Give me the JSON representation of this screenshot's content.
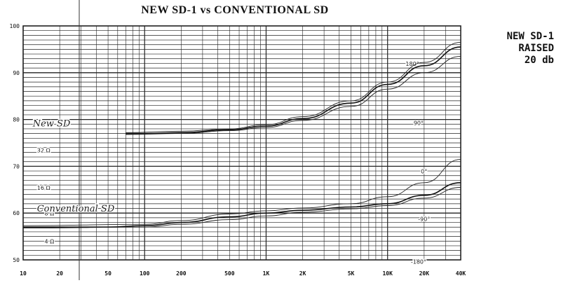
{
  "chart_data": {
    "type": "line",
    "title": "NEW SD-1 vs CONVENTIONAL SD",
    "side_note": [
      "NEW SD-1",
      "RAISED",
      "20 db"
    ],
    "x_scale": "log",
    "xlim": [
      10,
      40000
    ],
    "ylim": [
      50,
      100
    ],
    "grid": true,
    "x_ticks": [
      {
        "v": 10,
        "label": "10"
      },
      {
        "v": 20,
        "label": "20"
      },
      {
        "v": 50,
        "label": "50"
      },
      {
        "v": 100,
        "label": "100"
      },
      {
        "v": 200,
        "label": "200"
      },
      {
        "v": 500,
        "label": "500"
      },
      {
        "v": 1000,
        "label": "1K"
      },
      {
        "v": 2000,
        "label": "2K"
      },
      {
        "v": 5000,
        "label": "5K"
      },
      {
        "v": 10000,
        "label": "10K"
      },
      {
        "v": 20000,
        "label": "20K"
      },
      {
        "v": 40000,
        "label": "40K"
      }
    ],
    "y_ticks": [
      {
        "v": 100,
        "label": "100"
      },
      {
        "v": 90,
        "label": "90"
      },
      {
        "v": 80,
        "label": "80"
      },
      {
        "v": 70,
        "label": "70"
      },
      {
        "v": 60,
        "label": "60"
      },
      {
        "v": 50,
        "label": "50"
      }
    ],
    "phase_labels": [
      {
        "text": "180°",
        "x": 16000,
        "y": 91.5
      },
      {
        "text": "90°",
        "x": 18000,
        "y": 78.8
      },
      {
        "text": "0°",
        "x": 20000,
        "y": 68.5
      },
      {
        "text": "-90°",
        "x": 20000,
        "y": 58.3
      },
      {
        "text": "-180°",
        "x": 18000,
        "y": 49.2
      }
    ],
    "impedance_labels": [
      {
        "text": "32 Ω",
        "x": 13,
        "y": 73
      },
      {
        "text": "16 Ω",
        "x": 13,
        "y": 65
      },
      {
        "text": "8 Ω",
        "x": 15,
        "y": 59.5
      },
      {
        "text": "4 Ω",
        "x": 15,
        "y": 53.5
      }
    ],
    "handwritten_labels": [
      {
        "text": "New SD",
        "x": 12,
        "y": 78.5
      },
      {
        "text": "Conventional SD",
        "x": 13,
        "y": 60.3
      }
    ],
    "series": [
      {
        "name": "New SD",
        "color": "#111111",
        "width": 1.6,
        "x": [
          70,
          100,
          200,
          500,
          1000,
          2000,
          5000,
          10000,
          20000,
          40000
        ],
        "y": [
          77,
          77,
          77.2,
          77.8,
          78.6,
          80.2,
          83.5,
          87.5,
          91.5,
          95.5
        ]
      },
      {
        "name": "",
        "color": "#222222",
        "width": 0.9,
        "x": [
          70,
          200,
          500,
          1000,
          2000,
          5000,
          10000,
          20000,
          40000
        ],
        "y": [
          77.2,
          77.5,
          78,
          78.9,
          80.6,
          84,
          88,
          92.2,
          96.5
        ]
      },
      {
        "name": "",
        "color": "#222222",
        "width": 0.9,
        "x": [
          70,
          200,
          500,
          1000,
          2000,
          5000,
          10000,
          20000,
          40000
        ],
        "y": [
          76.8,
          77,
          77.6,
          78.3,
          79.8,
          82.8,
          86.5,
          90,
          93.5
        ]
      },
      {
        "name": "Conventional SD",
        "color": "#111111",
        "width": 1.6,
        "x": [
          10,
          50,
          100,
          200,
          500,
          1000,
          2000,
          5000,
          10000,
          20000,
          40000
        ],
        "y": [
          57,
          57,
          57.3,
          58,
          59.2,
          60,
          60.6,
          61.3,
          62,
          63.8,
          66.5
        ]
      },
      {
        "name": "",
        "color": "#222222",
        "width": 0.9,
        "x": [
          10,
          100,
          200,
          500,
          1000,
          2000,
          5000,
          10000,
          20000,
          40000
        ],
        "y": [
          57.3,
          57.6,
          58.4,
          59.8,
          60.5,
          61.1,
          62,
          63.5,
          66.5,
          71.5
        ]
      },
      {
        "name": "",
        "color": "#222222",
        "width": 0.9,
        "x": [
          10,
          100,
          200,
          500,
          1000,
          2000,
          5000,
          10000,
          20000,
          40000
        ],
        "y": [
          56.8,
          57,
          57.6,
          58.6,
          59.4,
          60.2,
          60.9,
          61.6,
          63.2,
          65.5
        ]
      }
    ]
  }
}
